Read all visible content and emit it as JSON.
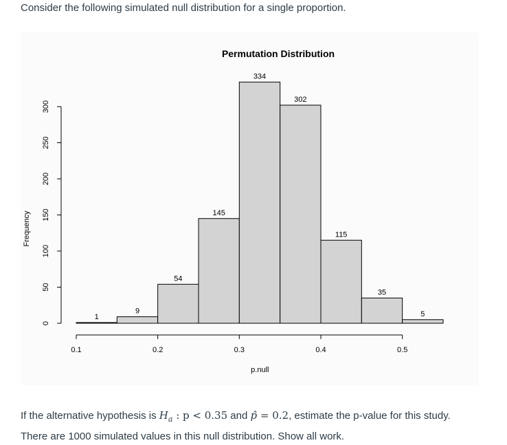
{
  "prompt": "Consider the following simulated null distribution for a single proportion.",
  "chart_data": {
    "type": "bar",
    "title": "Permutation Distribution",
    "xlabel": "p.null",
    "ylabel": "Frequency",
    "bin_edges": [
      0.1,
      0.15,
      0.2,
      0.25,
      0.3,
      0.35,
      0.4,
      0.45,
      0.5,
      0.55
    ],
    "values": [
      1,
      9,
      54,
      145,
      334,
      302,
      115,
      35,
      5
    ],
    "xlim": [
      0.1,
      0.55
    ],
    "ylim": [
      0,
      300
    ],
    "x_ticks": [
      "0.1",
      "0.2",
      "0.3",
      "0.4",
      "0.5"
    ],
    "y_ticks": [
      "0",
      "50",
      "100",
      "150",
      "200",
      "250",
      "300"
    ],
    "bar_color": "#d3d3d3",
    "bar_border": "#000000",
    "grid": false
  },
  "question": {
    "line1_pre": "If the alternative hypothesis is ",
    "ha_symbol": "H",
    "ha_sub": "a",
    "ha_rest": " : p < 0.35",
    "line1_mid": " and ",
    "phat_symbol": "p̂",
    "phat_rest": " = 0.2",
    "line1_post": ", estimate the p-value for this study.",
    "line2": "There are 1000 simulated values in this null distribution. Show all work."
  }
}
